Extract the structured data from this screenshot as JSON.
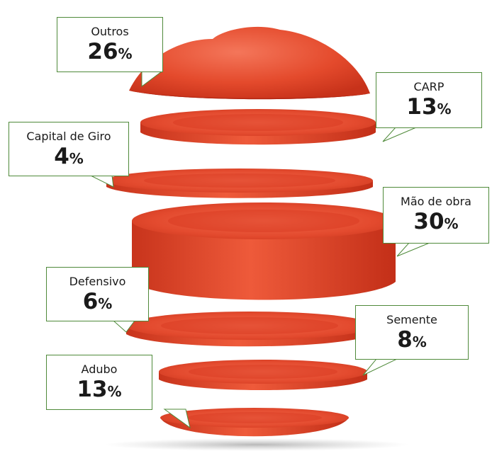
{
  "chart_data": {
    "type": "pie",
    "title": "",
    "unit": "%",
    "categories": [
      "Outros",
      "CARP",
      "Capital de Giro",
      "Mão de obra",
      "Defensivo",
      "Semente",
      "Adubo"
    ],
    "values": [
      26,
      13,
      4,
      30,
      6,
      8,
      13
    ],
    "colors": {
      "tomato_flesh": "#e3462e",
      "tomato_dark": "#b52815",
      "tomato_light": "#f0684a",
      "callout_border": "#4f8a3a"
    }
  }
}
